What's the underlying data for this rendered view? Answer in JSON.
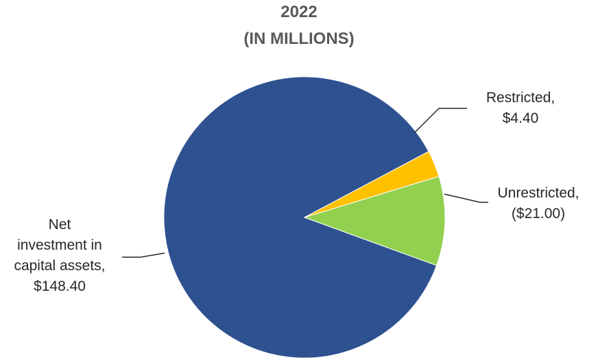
{
  "chart_data": {
    "type": "pie",
    "title": "2022",
    "subtitle": "(IN MILLIONS)",
    "slices": [
      {
        "name": "Net investment in capital assets",
        "value": 148.4,
        "label_value": "$148.40",
        "color": "#2e5190"
      },
      {
        "name": "Restricted",
        "value": 4.4,
        "label_value": "$4.40",
        "color": "#ffc000"
      },
      {
        "name": "Unrestricted",
        "value": 21.0,
        "label_value": "($21.00)",
        "color": "#92d050"
      }
    ]
  },
  "labels": {
    "restricted": [
      "Restricted,",
      "$4.40"
    ],
    "unrestricted": [
      "Unrestricted,",
      "($21.00)"
    ],
    "net": [
      "Net",
      "investment in",
      "capital assets,",
      "$148.40"
    ]
  }
}
